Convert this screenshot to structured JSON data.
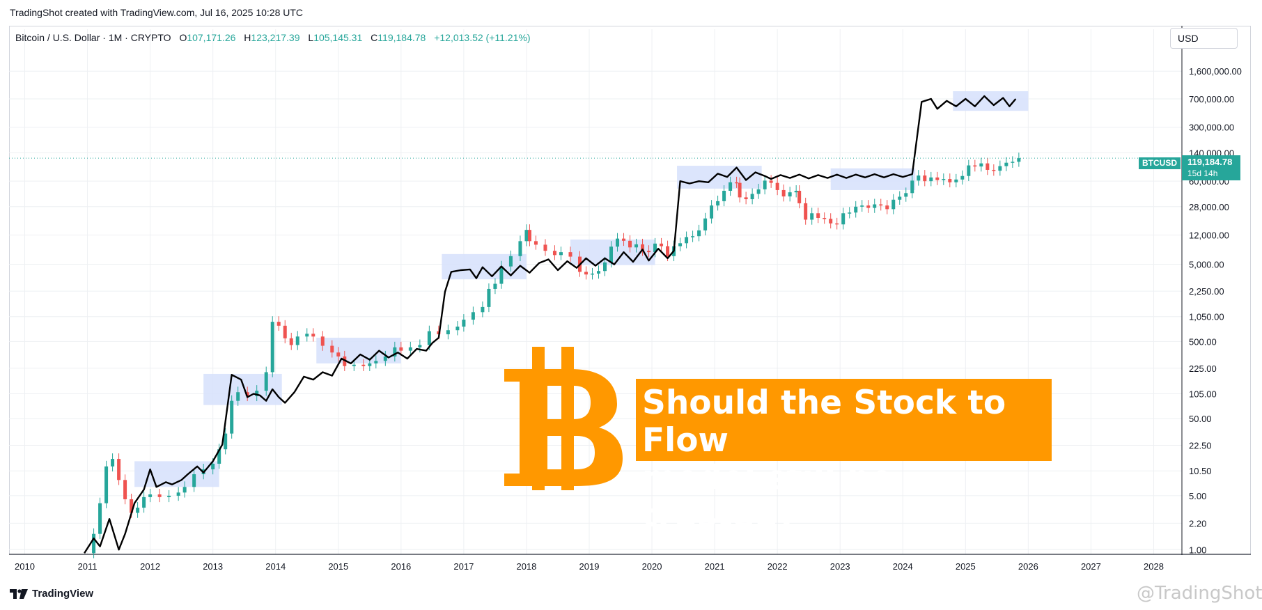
{
  "header": {
    "title": "TradingShot created with TradingView.com, Jul 16, 2025 10:28 UTC"
  },
  "legend": {
    "symbol": "Bitcoin / U.S. Dollar · 1M · CRYPTO",
    "open_label": "O",
    "open_value": "107,171.26",
    "high_label": "H",
    "high_value": "123,217.39",
    "low_label": "L",
    "low_value": "105,145.31",
    "close_label": "C",
    "close_value": "119,184.78",
    "change": "+12,013.52 (+11.21%)"
  },
  "currency": "USD",
  "price_tag": {
    "name": "BTCUSD",
    "value": "119,184.78",
    "countdown": "15d 14h"
  },
  "headline": {
    "line1": "Should the Stock to Flow",
    "line2": "model still be trusted?"
  },
  "footer": {
    "brand": "TradingView",
    "watermark": "@TradingShot"
  },
  "colors": {
    "up": "#26a69a",
    "down": "#ef5350",
    "model": "#000000",
    "highlight": "#d6e0fb",
    "accent": "#ff9800"
  },
  "icons": [
    "bitcoin-icon",
    "tradingview-logo-icon",
    "price-line-icon"
  ],
  "chart_data": {
    "type": "line",
    "scale": "log",
    "grid": true,
    "xlabel": "",
    "ylabel": "",
    "x_ticks": [
      "2010",
      "2011",
      "2012",
      "2013",
      "2014",
      "2015",
      "2016",
      "2017",
      "2018",
      "2019",
      "2020",
      "2021",
      "2022",
      "2023",
      "2024",
      "2025",
      "2026",
      "2027",
      "2028"
    ],
    "y_ticks": [
      1,
      2.2,
      5,
      10.5,
      22.5,
      50,
      105,
      225,
      500,
      1050,
      2250,
      5000,
      12000,
      28000,
      60000,
      140000,
      300000,
      700000,
      1600000
    ],
    "y_tick_labels": [
      "1.00",
      "2.20",
      "5.00",
      "10.50",
      "22.50",
      "50.00",
      "105.00",
      "225.00",
      "500.00",
      "1,050.00",
      "2,250.00",
      "5,000.00",
      "12,000.00",
      "28,000.00",
      "60,000.00",
      "140,000.00",
      "300,000.00",
      "700,000.00",
      "1,600,000.00"
    ],
    "xlim": [
      2009.75,
      2028.45
    ],
    "ylim": [
      0.87,
      3000000
    ],
    "current_price": 119184.78,
    "series": [
      {
        "kind": "line",
        "points": [
          [
            2010.95,
            0.9
          ],
          [
            2011.1,
            1.4
          ],
          [
            2011.2,
            1.1
          ],
          [
            2011.35,
            2.5
          ],
          [
            2011.5,
            1.0
          ],
          [
            2011.6,
            1.6
          ],
          [
            2011.75,
            4
          ],
          [
            2011.9,
            6
          ],
          [
            2012.0,
            11
          ],
          [
            2012.1,
            6.5
          ],
          [
            2012.25,
            7.5
          ],
          [
            2012.35,
            7
          ],
          [
            2012.5,
            8
          ],
          [
            2012.6,
            9.5
          ],
          [
            2012.75,
            12
          ],
          [
            2012.85,
            10
          ],
          [
            2013.0,
            14
          ],
          [
            2013.15,
            23
          ],
          [
            2013.3,
            185
          ],
          [
            2013.45,
            160
          ],
          [
            2013.55,
            95
          ],
          [
            2013.65,
            105
          ],
          [
            2013.75,
            100
          ],
          [
            2013.85,
            85
          ],
          [
            2013.95,
            120
          ],
          [
            2014.05,
            95
          ],
          [
            2014.15,
            80
          ],
          [
            2014.3,
            110
          ],
          [
            2014.45,
            175
          ],
          [
            2014.6,
            160
          ],
          [
            2014.75,
            200
          ],
          [
            2014.9,
            180
          ],
          [
            2015.05,
            300
          ],
          [
            2015.2,
            260
          ],
          [
            2015.35,
            340
          ],
          [
            2015.5,
            290
          ],
          [
            2015.65,
            380
          ],
          [
            2015.8,
            310
          ],
          [
            2015.95,
            360
          ],
          [
            2016.1,
            300
          ],
          [
            2016.25,
            400
          ],
          [
            2016.4,
            380
          ],
          [
            2016.5,
            480
          ],
          [
            2016.6,
            560
          ],
          [
            2016.7,
            2200
          ],
          [
            2016.8,
            4000
          ],
          [
            2016.95,
            4200
          ],
          [
            2017.1,
            4300
          ],
          [
            2017.2,
            3300
          ],
          [
            2017.3,
            4600
          ],
          [
            2017.45,
            3500
          ],
          [
            2017.6,
            4700
          ],
          [
            2017.75,
            3600
          ],
          [
            2017.9,
            4800
          ],
          [
            2018.05,
            3900
          ],
          [
            2018.2,
            5200
          ],
          [
            2018.35,
            5800
          ],
          [
            2018.5,
            4200
          ],
          [
            2018.65,
            5500
          ],
          [
            2018.8,
            4500
          ],
          [
            2018.95,
            6000
          ],
          [
            2019.1,
            4800
          ],
          [
            2019.25,
            6000
          ],
          [
            2019.4,
            5000
          ],
          [
            2019.55,
            7200
          ],
          [
            2019.7,
            5400
          ],
          [
            2019.85,
            7800
          ],
          [
            2019.95,
            5600
          ],
          [
            2020.1,
            8000
          ],
          [
            2020.25,
            6000
          ],
          [
            2020.35,
            7500
          ],
          [
            2020.45,
            60000
          ],
          [
            2020.6,
            56000
          ],
          [
            2020.75,
            60000
          ],
          [
            2020.9,
            58000
          ],
          [
            2021.05,
            75000
          ],
          [
            2021.2,
            68000
          ],
          [
            2021.35,
            90000
          ],
          [
            2021.5,
            62000
          ],
          [
            2021.65,
            78000
          ],
          [
            2021.8,
            70000
          ],
          [
            2021.9,
            64000
          ],
          [
            2022.05,
            72000
          ],
          [
            2022.2,
            66000
          ],
          [
            2022.35,
            73000
          ],
          [
            2022.5,
            65000
          ],
          [
            2022.65,
            72000
          ],
          [
            2022.8,
            66000
          ],
          [
            2022.95,
            73000
          ],
          [
            2023.1,
            66000
          ],
          [
            2023.25,
            73000
          ],
          [
            2023.4,
            67000
          ],
          [
            2023.55,
            74000
          ],
          [
            2023.7,
            67000
          ],
          [
            2023.85,
            74000
          ],
          [
            2024.0,
            68000
          ],
          [
            2024.15,
            74000
          ],
          [
            2024.3,
            640000
          ],
          [
            2024.45,
            700000
          ],
          [
            2024.55,
            520000
          ],
          [
            2024.7,
            660000
          ],
          [
            2024.85,
            560000
          ],
          [
            2025.0,
            700000
          ],
          [
            2025.15,
            560000
          ],
          [
            2025.3,
            760000
          ],
          [
            2025.45,
            580000
          ],
          [
            2025.6,
            720000
          ],
          [
            2025.7,
            560000
          ],
          [
            2025.8,
            700000
          ]
        ]
      },
      {
        "kind": "candlestick",
        "points": [
          [
            2011.0,
            0.9
          ],
          [
            2011.1,
            1.6
          ],
          [
            2011.2,
            4
          ],
          [
            2011.3,
            12
          ],
          [
            2011.4,
            15
          ],
          [
            2011.5,
            8
          ],
          [
            2011.6,
            4.5
          ],
          [
            2011.7,
            3
          ],
          [
            2011.8,
            3.5
          ],
          [
            2011.9,
            4.8
          ],
          [
            2012.0,
            5.2
          ],
          [
            2012.15,
            4.8
          ],
          [
            2012.3,
            5.0
          ],
          [
            2012.45,
            5.5
          ],
          [
            2012.55,
            6.5
          ],
          [
            2012.7,
            9.5
          ],
          [
            2012.85,
            11
          ],
          [
            2013.0,
            13
          ],
          [
            2013.1,
            20
          ],
          [
            2013.2,
            32
          ],
          [
            2013.3,
            85
          ],
          [
            2013.4,
            110
          ],
          [
            2013.55,
            98
          ],
          [
            2013.7,
            115
          ],
          [
            2013.85,
            200
          ],
          [
            2013.95,
            900
          ],
          [
            2014.05,
            800
          ],
          [
            2014.15,
            550
          ],
          [
            2014.25,
            450
          ],
          [
            2014.35,
            580
          ],
          [
            2014.5,
            630
          ],
          [
            2014.6,
            580
          ],
          [
            2014.75,
            440
          ],
          [
            2014.9,
            360
          ],
          [
            2015.0,
            320
          ],
          [
            2015.1,
            240
          ],
          [
            2015.25,
            250
          ],
          [
            2015.4,
            240
          ],
          [
            2015.5,
            260
          ],
          [
            2015.6,
            280
          ],
          [
            2015.75,
            320
          ],
          [
            2015.9,
            420
          ],
          [
            2016.0,
            380
          ],
          [
            2016.15,
            420
          ],
          [
            2016.3,
            450
          ],
          [
            2016.45,
            680
          ],
          [
            2016.6,
            620
          ],
          [
            2016.75,
            700
          ],
          [
            2016.9,
            780
          ],
          [
            2017.0,
            960
          ],
          [
            2017.15,
            1200
          ],
          [
            2017.3,
            1400
          ],
          [
            2017.4,
            2400
          ],
          [
            2017.5,
            2800
          ],
          [
            2017.6,
            4700
          ],
          [
            2017.75,
            6400
          ],
          [
            2017.9,
            10000
          ],
          [
            2018.0,
            14000
          ],
          [
            2018.05,
            10000
          ],
          [
            2018.15,
            9000
          ],
          [
            2018.3,
            7500
          ],
          [
            2018.45,
            6600
          ],
          [
            2018.55,
            7200
          ],
          [
            2018.7,
            6300
          ],
          [
            2018.85,
            4000
          ],
          [
            2018.95,
            3700
          ],
          [
            2019.05,
            3800
          ],
          [
            2019.15,
            4100
          ],
          [
            2019.25,
            5300
          ],
          [
            2019.35,
            8500
          ],
          [
            2019.45,
            10800
          ],
          [
            2019.55,
            10100
          ],
          [
            2019.65,
            8300
          ],
          [
            2019.75,
            9100
          ],
          [
            2019.85,
            7500
          ],
          [
            2019.95,
            7200
          ],
          [
            2020.05,
            9300
          ],
          [
            2020.15,
            8600
          ],
          [
            2020.25,
            6400
          ],
          [
            2020.35,
            8600
          ],
          [
            2020.45,
            9400
          ],
          [
            2020.55,
            11300
          ],
          [
            2020.65,
            11600
          ],
          [
            2020.75,
            13800
          ],
          [
            2020.85,
            19700
          ],
          [
            2020.95,
            29000
          ],
          [
            2021.05,
            33000
          ],
          [
            2021.15,
            45000
          ],
          [
            2021.25,
            58000
          ],
          [
            2021.35,
            57000
          ],
          [
            2021.4,
            37000
          ],
          [
            2021.5,
            35000
          ],
          [
            2021.6,
            41000
          ],
          [
            2021.7,
            47000
          ],
          [
            2021.8,
            61000
          ],
          [
            2021.9,
            57000
          ],
          [
            2022.0,
            46000
          ],
          [
            2022.1,
            38000
          ],
          [
            2022.2,
            43000
          ],
          [
            2022.3,
            45000
          ],
          [
            2022.35,
            31000
          ],
          [
            2022.45,
            19000
          ],
          [
            2022.55,
            23000
          ],
          [
            2022.65,
            20000
          ],
          [
            2022.75,
            19500
          ],
          [
            2022.85,
            17000
          ],
          [
            2022.95,
            16500
          ],
          [
            2023.05,
            23000
          ],
          [
            2023.15,
            23500
          ],
          [
            2023.25,
            28000
          ],
          [
            2023.35,
            29000
          ],
          [
            2023.45,
            27000
          ],
          [
            2023.55,
            30000
          ],
          [
            2023.65,
            29000
          ],
          [
            2023.75,
            26000
          ],
          [
            2023.85,
            34500
          ],
          [
            2023.95,
            37700
          ],
          [
            2024.05,
            42000
          ],
          [
            2024.15,
            61000
          ],
          [
            2024.25,
            71000
          ],
          [
            2024.35,
            60000
          ],
          [
            2024.45,
            67000
          ],
          [
            2024.55,
            62000
          ],
          [
            2024.65,
            64000
          ],
          [
            2024.75,
            58000
          ],
          [
            2024.85,
            63000
          ],
          [
            2024.95,
            70000
          ],
          [
            2025.05,
            96000
          ],
          [
            2025.15,
            93000
          ],
          [
            2025.25,
            102000
          ],
          [
            2025.35,
            84000
          ],
          [
            2025.45,
            82000
          ],
          [
            2025.55,
            94000
          ],
          [
            2025.65,
            104000
          ],
          [
            2025.75,
            107000
          ],
          [
            2025.85,
            119184.78
          ]
        ]
      }
    ],
    "highlight_ranges": [
      {
        "x": [
          2011.75,
          2013.1
        ],
        "y": [
          6.5,
          14
        ]
      },
      {
        "x": [
          2012.85,
          2014.1
        ],
        "y": [
          75,
          190
        ]
      },
      {
        "x": [
          2014.65,
          2016.0
        ],
        "y": [
          260,
          560
        ]
      },
      {
        "x": [
          2016.65,
          2018.0
        ],
        "y": [
          3200,
          6800
        ]
      },
      {
        "x": [
          2018.7,
          2020.05
        ],
        "y": [
          4900,
          10500
        ]
      },
      {
        "x": [
          2020.4,
          2021.75
        ],
        "y": [
          48000,
          95000
        ]
      },
      {
        "x": [
          2022.85,
          2024.2
        ],
        "y": [
          46000,
          88000
        ]
      },
      {
        "x": [
          2024.8,
          2026.0
        ],
        "y": [
          490000,
          880000
        ]
      }
    ]
  }
}
